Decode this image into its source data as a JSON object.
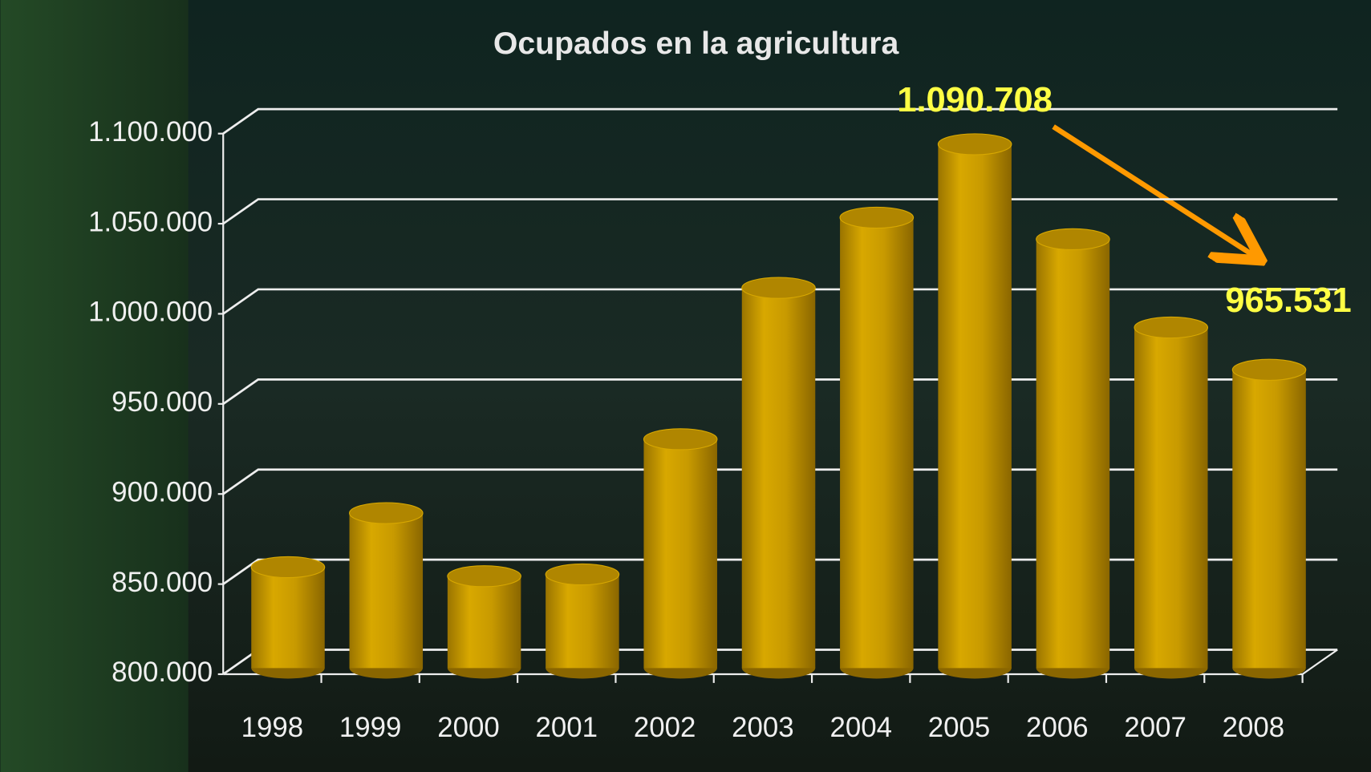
{
  "chart_data": {
    "type": "bar",
    "title": "Ocupados en la agricultura",
    "categories": [
      "1998",
      "1999",
      "2000",
      "2001",
      "2002",
      "2003",
      "2004",
      "2005",
      "2006",
      "2007",
      "2008"
    ],
    "values": [
      856000,
      886000,
      851000,
      852000,
      927000,
      1011000,
      1050000,
      1090708,
      1038000,
      989000,
      965531
    ],
    "value_labels": [
      null,
      null,
      null,
      null,
      null,
      null,
      null,
      "1.090.708",
      null,
      null,
      "965.531"
    ],
    "color": "#c89a00",
    "ylim": [
      800000,
      1100000
    ],
    "yticks": [
      {
        "value": 800000,
        "label": "800.000"
      },
      {
        "value": 850000,
        "label": "850.000"
      },
      {
        "value": 900000,
        "label": "900.000"
      },
      {
        "value": 950000,
        "label": "950.000"
      },
      {
        "value": 1000000,
        "label": "1.000.000"
      },
      {
        "value": 1050000,
        "label": "1.050.000"
      },
      {
        "value": 1100000,
        "label": "1.100.000"
      }
    ],
    "grid": true
  }
}
